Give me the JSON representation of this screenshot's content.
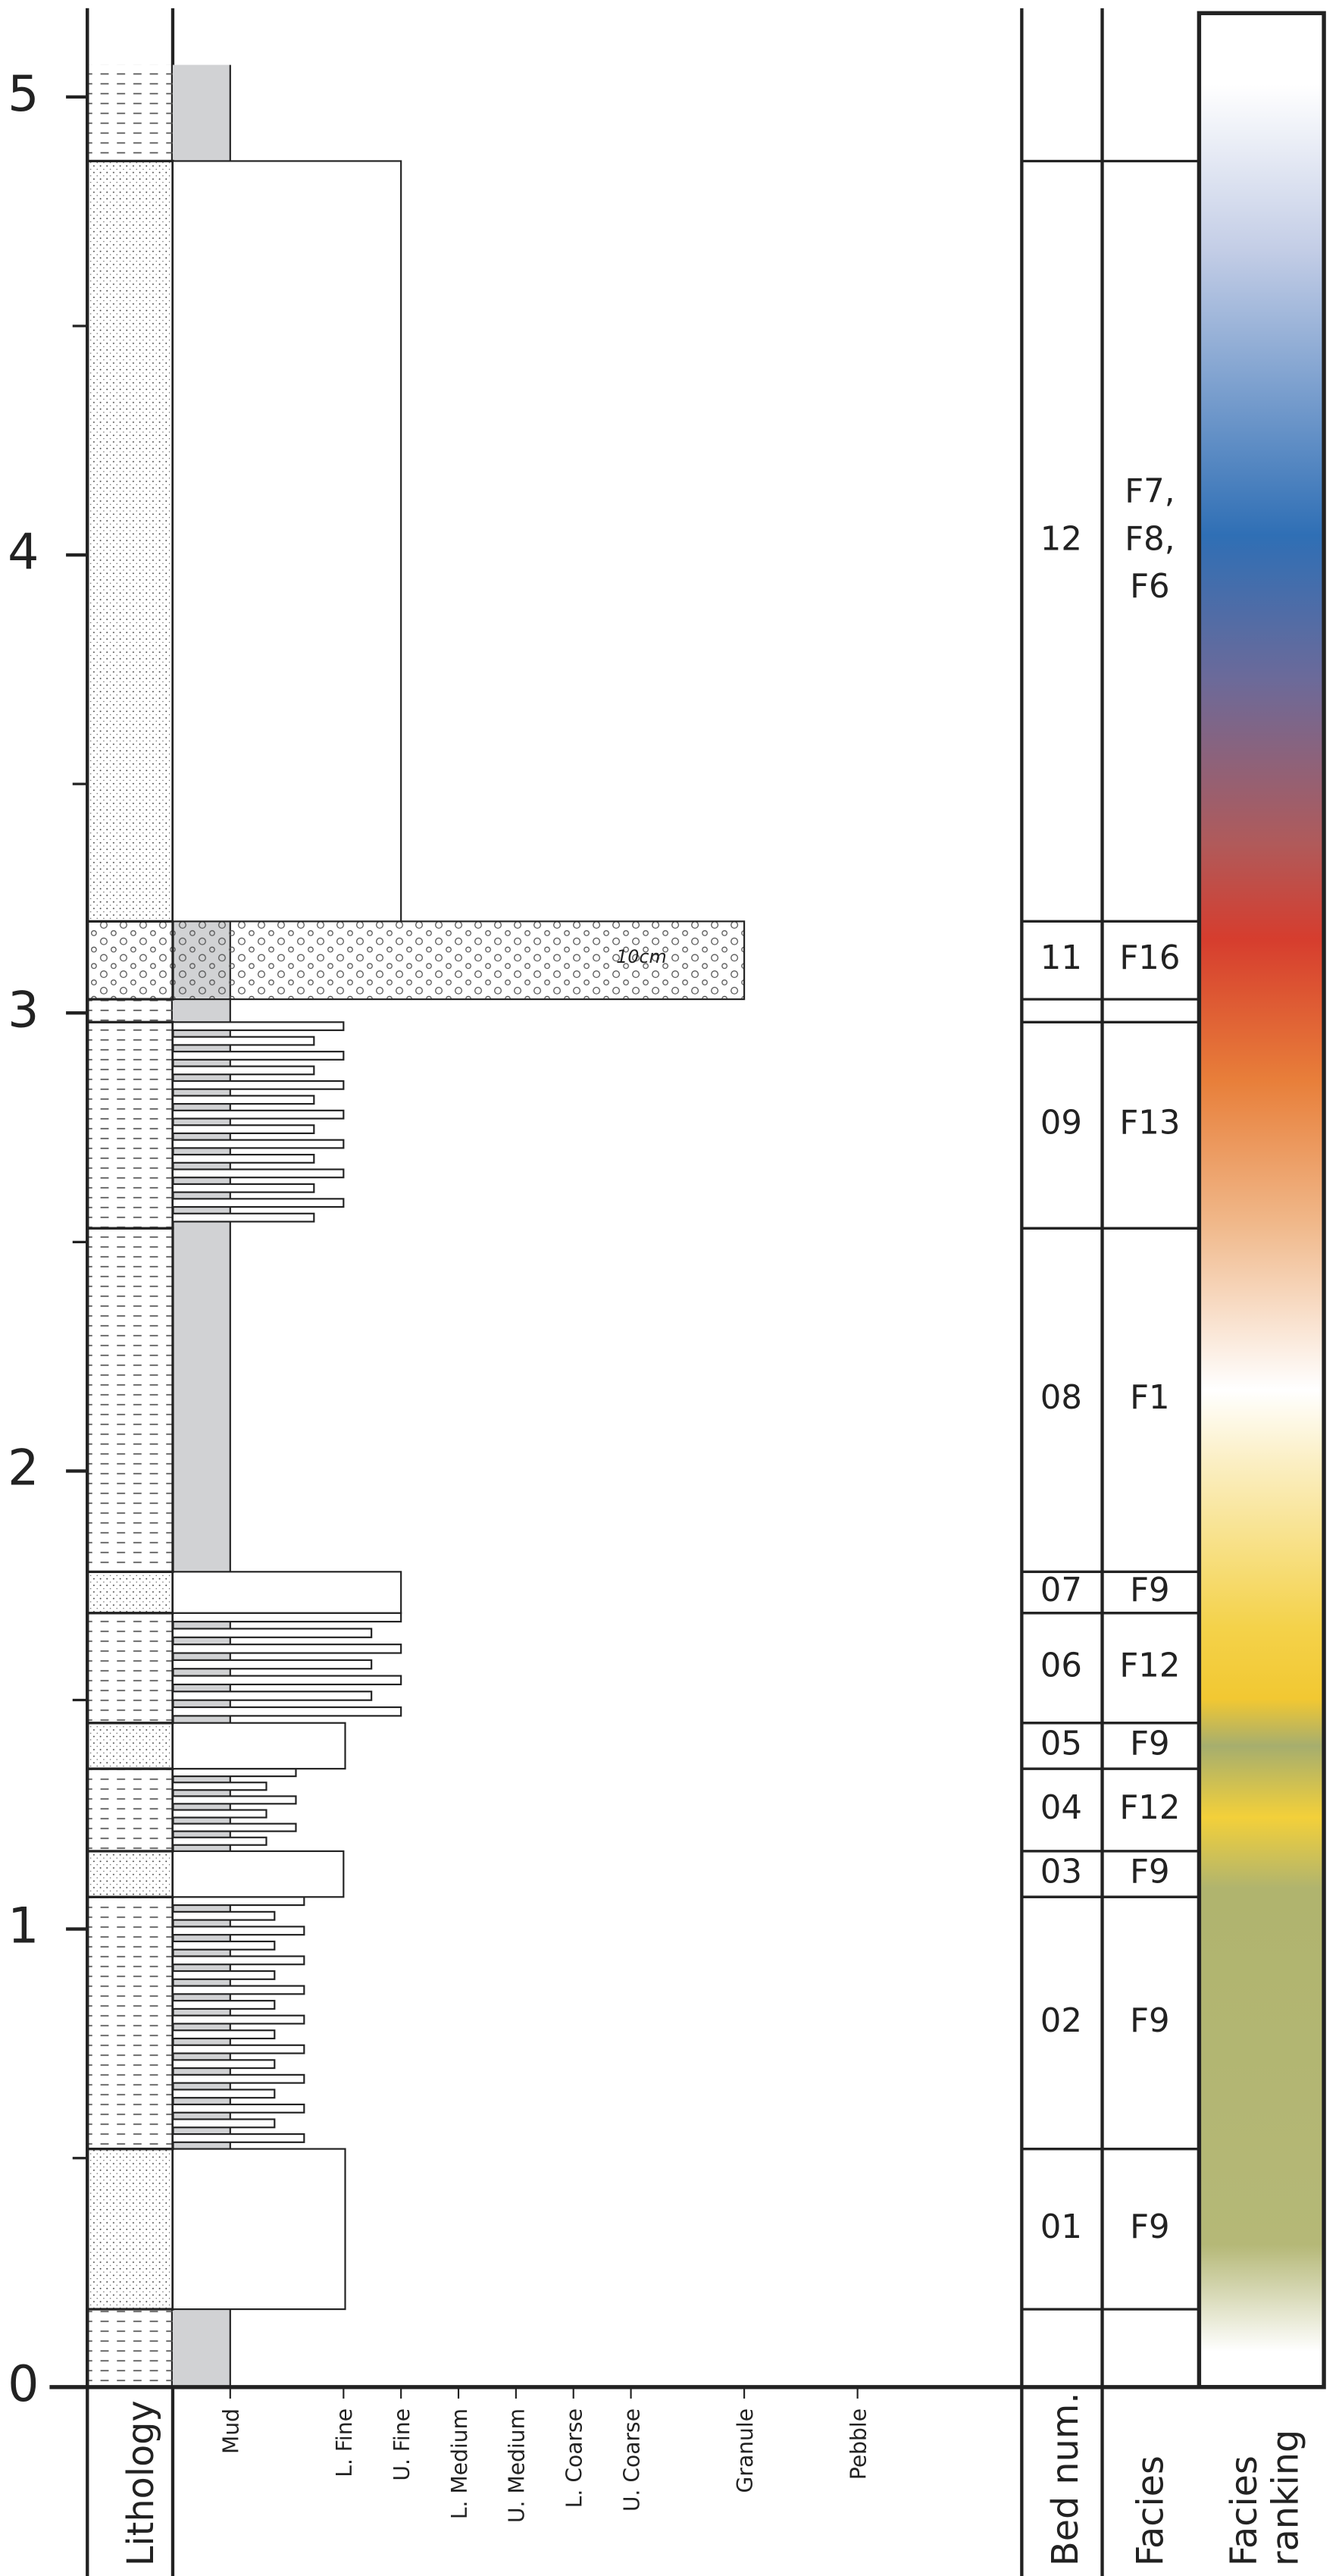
{
  "depth_axis": {
    "ylim": [
      0,
      5.07
    ],
    "yticks": [
      0,
      1,
      2,
      3,
      4,
      5
    ],
    "minor_yticks": [
      0.5,
      1.5,
      2.5,
      3.5,
      4.5
    ]
  },
  "columns": {
    "lithology": "Lithology",
    "bed": "Bed num.",
    "facies": "Facies",
    "ranking": [
      "Facies",
      "ranking"
    ]
  },
  "grain_sizes": [
    "Mud",
    "L. Fine",
    "U. Fine",
    "L. Medium",
    "U. Medium",
    "L. Coarse",
    "U. Coarse",
    "Granule",
    "Pebble"
  ],
  "scale_note": "10cm",
  "beds": [
    {
      "number": "01",
      "facies": [
        "F9"
      ],
      "bottom": 0.17,
      "top": 0.52
    },
    {
      "number": "02",
      "facies": [
        "F9"
      ],
      "bottom": 0.52,
      "top": 1.07
    },
    {
      "number": "03",
      "facies": [
        "F9"
      ],
      "bottom": 1.07,
      "top": 1.17
    },
    {
      "number": "04",
      "facies": [
        "F12"
      ],
      "bottom": 1.17,
      "top": 1.35
    },
    {
      "number": "05",
      "facies": [
        "F9"
      ],
      "bottom": 1.35,
      "top": 1.45
    },
    {
      "number": "06",
      "facies": [
        "F12"
      ],
      "bottom": 1.45,
      "top": 1.69
    },
    {
      "number": "07",
      "facies": [
        "F9"
      ],
      "bottom": 1.69,
      "top": 1.78
    },
    {
      "number": "08",
      "facies": [
        "F1"
      ],
      "bottom": 1.78,
      "top": 2.53
    },
    {
      "number": "09",
      "facies": [
        "F13"
      ],
      "bottom": 2.53,
      "top": 2.98
    },
    {
      "number": "11",
      "facies": [
        "F16"
      ],
      "bottom": 3.03,
      "top": 3.2
    },
    {
      "number": "12",
      "facies": [
        "F7,",
        "F8,",
        "F6"
      ],
      "bottom": 3.2,
      "top": 4.86
    }
  ]
}
